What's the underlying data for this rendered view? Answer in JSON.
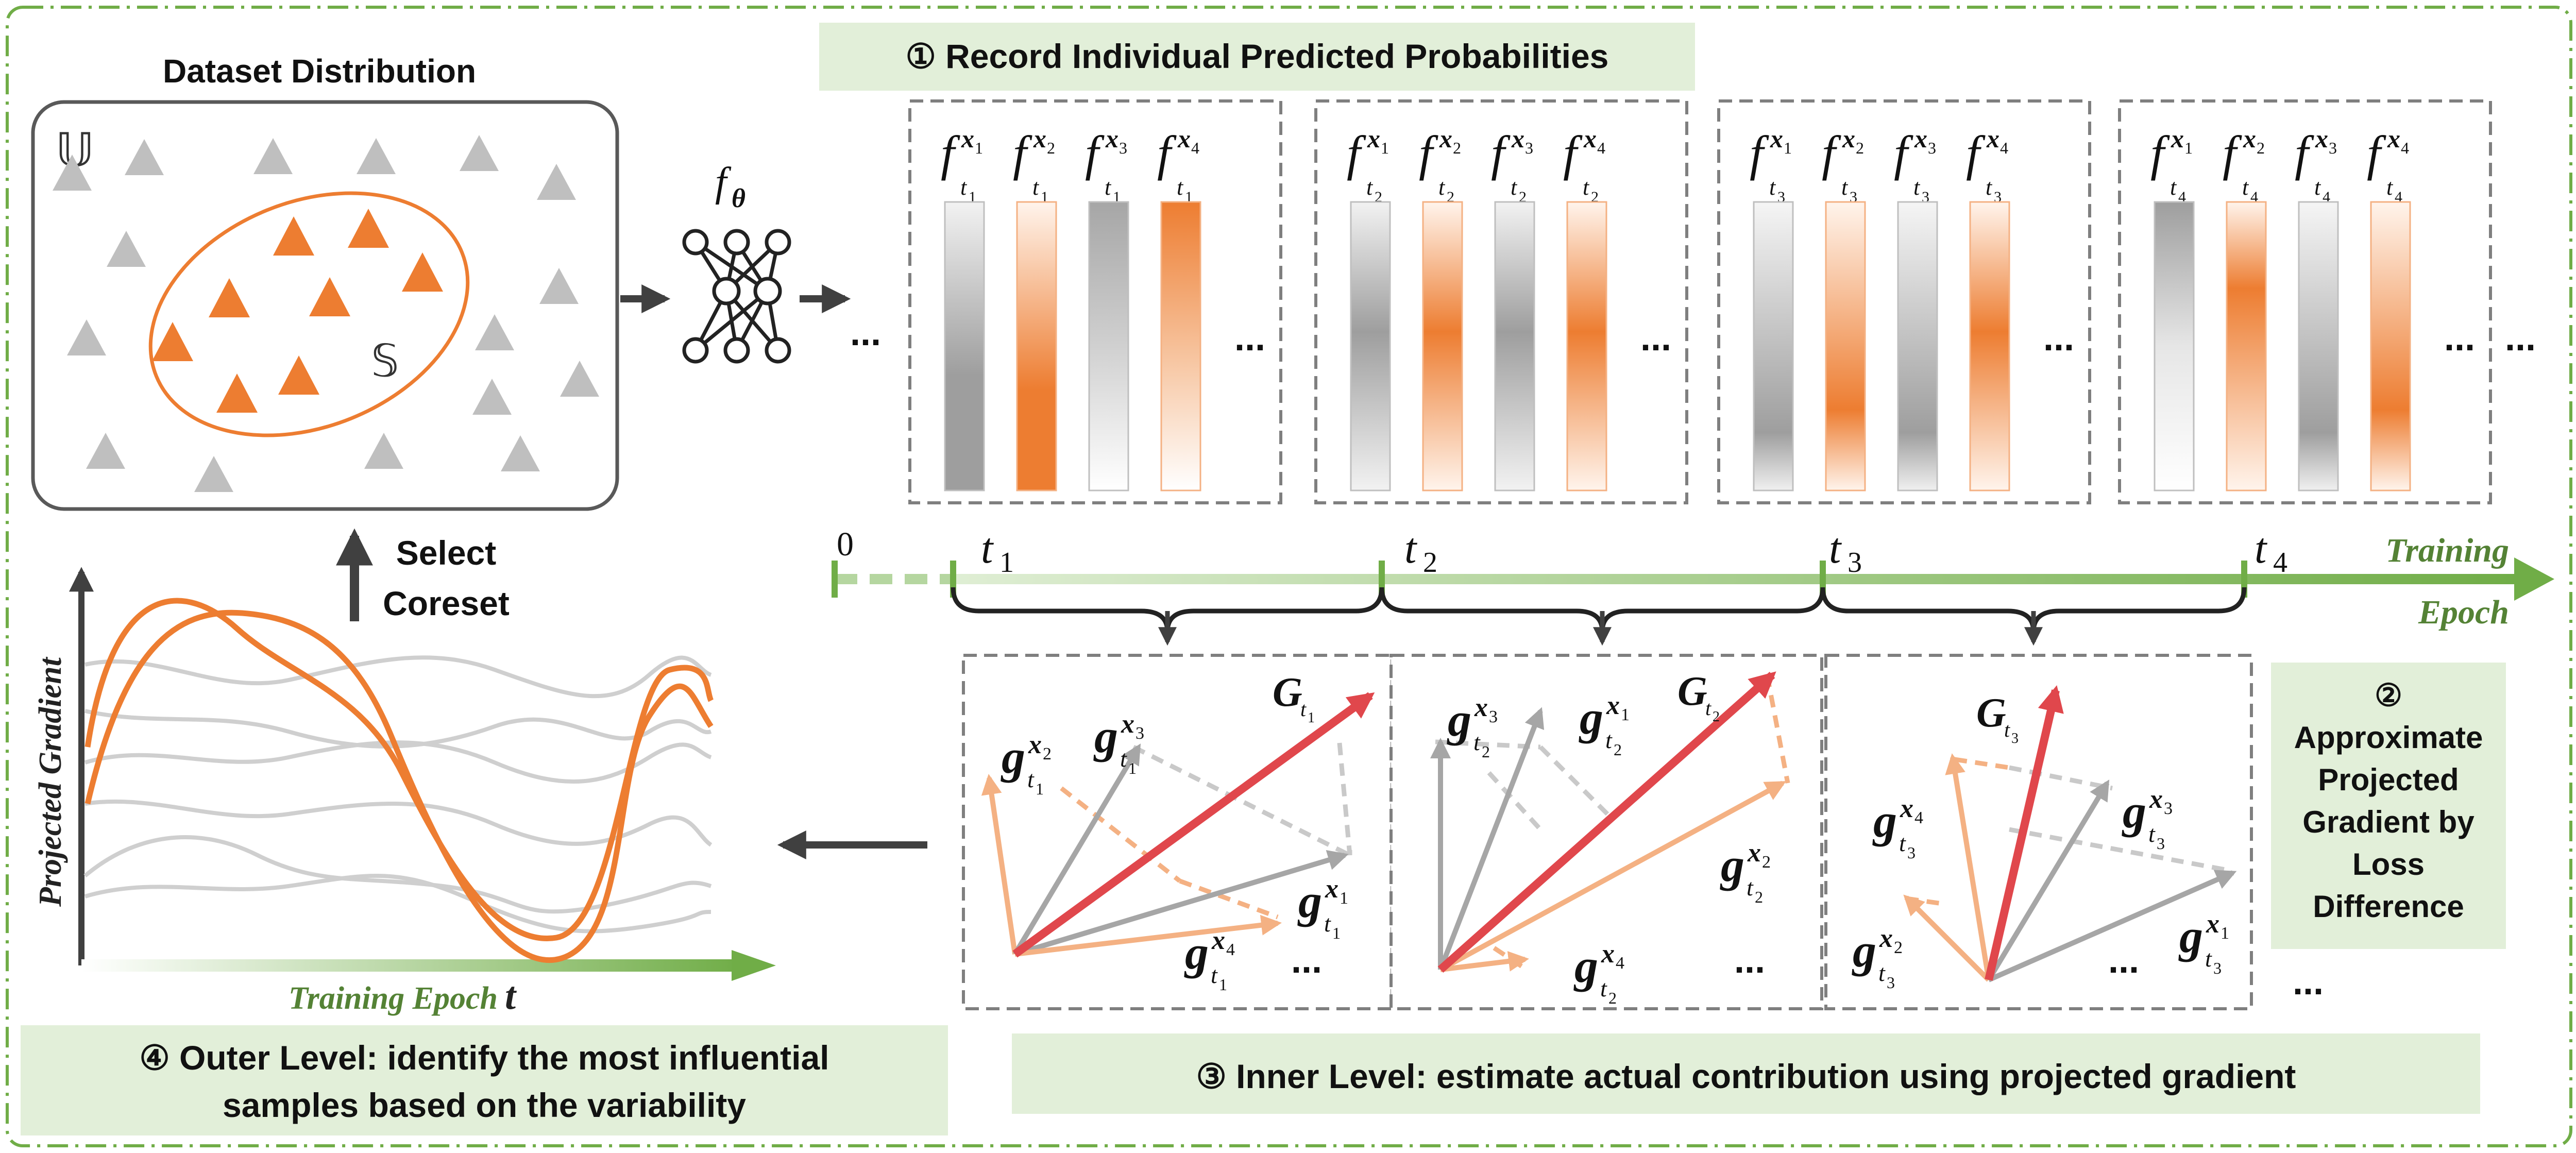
{
  "dataset": {
    "title": "Dataset Distribution",
    "universe_symbol": "𝕌",
    "subset_symbol": "𝕊"
  },
  "select": {
    "line1": "Select",
    "line2": "Coreset"
  },
  "model": {
    "letter": "f",
    "subscript": "θ"
  },
  "step1": {
    "label": "① Record Individual Predicted Probabilities"
  },
  "step2": {
    "lines": [
      "②",
      "Approximate",
      "Projected",
      "Gradient by",
      "Loss",
      "Difference"
    ]
  },
  "step3": {
    "label": "③  Inner Level: estimate actual contribution using projected gradient"
  },
  "step4": {
    "line1": "④  Outer Level: identify the most influential",
    "line2": "samples based on the variability"
  },
  "epochs": {
    "boxes": [
      {
        "t": "1",
        "samples": [
          "1",
          "2",
          "3",
          "4"
        ]
      },
      {
        "t": "2",
        "samples": [
          "1",
          "2",
          "3",
          "4"
        ]
      },
      {
        "t": "3",
        "samples": [
          "1",
          "2",
          "3",
          "4"
        ]
      },
      {
        "t": "4",
        "samples": [
          "1",
          "2",
          "3",
          "4"
        ]
      }
    ]
  },
  "timeline": {
    "zero": "0",
    "ticks": [
      "t",
      "t",
      "t",
      "t"
    ],
    "tick_subs": [
      "1",
      "2",
      "3",
      "4"
    ],
    "label_line1": "Training",
    "label_line2": "Epoch"
  },
  "gradient_boxes": [
    {
      "G_sub": "t1",
      "t": "1"
    },
    {
      "G_sub": "t2",
      "t": "2"
    },
    {
      "G_sub": "t3",
      "t": "3"
    }
  ],
  "ellipsis": "...",
  "chart": {
    "ylabel": "Projected Gradient",
    "xlabel": "Training Epoch",
    "xsymbol": "t"
  },
  "colors": {
    "border_green": "#70ad47",
    "panel_green": "#e2efd9",
    "orange": "#ed7d31",
    "light_orange": "#f4b183",
    "gray": "#a6a6a6",
    "light_gray": "#c9c9c9",
    "red": "#e0474c",
    "dark": "#404040"
  }
}
